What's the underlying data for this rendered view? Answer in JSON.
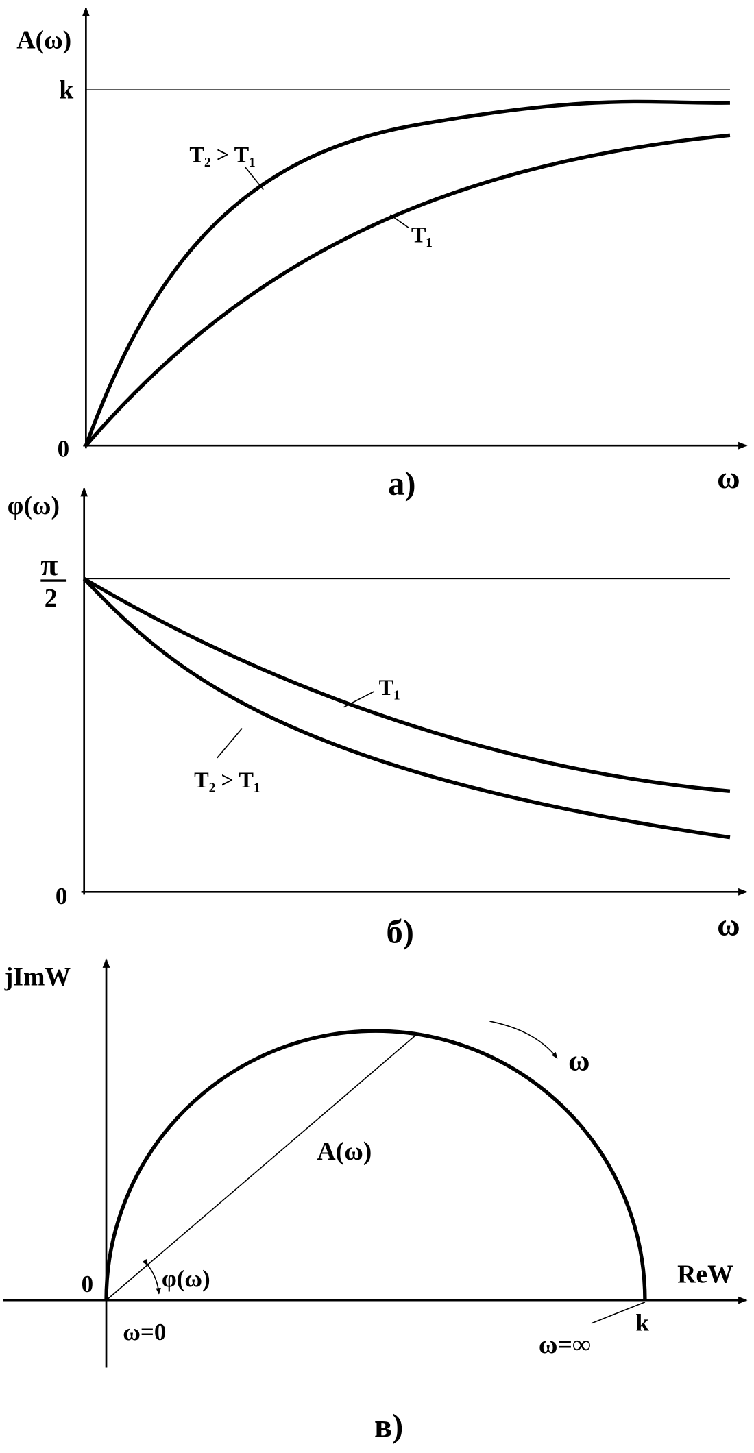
{
  "panel_a": {
    "y_label": "A(ω)",
    "k": "k",
    "origin": "0",
    "x_label": "ω",
    "curve_t2": "T₂ > T₁",
    "curve_t1": "T₁",
    "caption": "а)"
  },
  "panel_b": {
    "y_label": "φ(ω)",
    "pi": "π",
    "two": "2",
    "origin": "0",
    "x_label": "ω",
    "curve_t1": "T₁",
    "curve_t2": "T₂ > T₁",
    "caption": "б)"
  },
  "panel_c": {
    "y_label": "jImW",
    "x_label": "ReW",
    "origin": "0",
    "omega": "ω",
    "radius_label": "A(ω)",
    "angle_label": "φ(ω)",
    "omega_zero": "ω=0",
    "omega_inf": "ω=∞",
    "k": "k",
    "caption": "в)"
  }
}
